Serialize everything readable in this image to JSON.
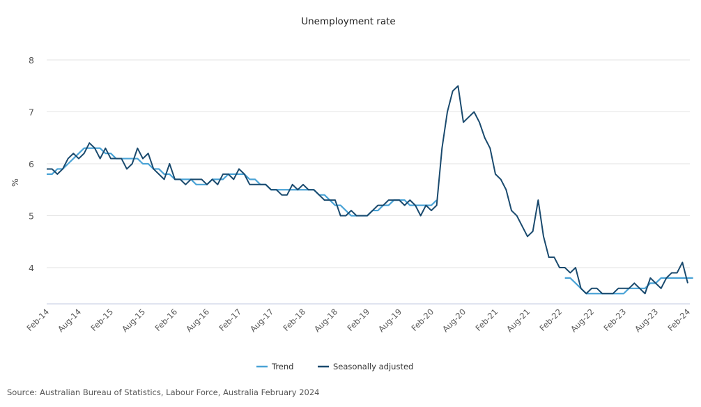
{
  "chart_data": {
    "type": "line",
    "title": "Unemployment rate",
    "xlabel": "",
    "ylabel": "%",
    "ylim": [
      3.3,
      8
    ],
    "yticks": [
      "4",
      "5",
      "6",
      "7",
      "8"
    ],
    "ytick_values": [
      4,
      5,
      6,
      7,
      8
    ],
    "grid": true,
    "legend_position": "bottom",
    "x_start": "Feb-14",
    "x_tick_labels": [
      "Feb-14",
      "Aug-14",
      "Feb-15",
      "Aug-15",
      "Feb-16",
      "Aug-16",
      "Feb-17",
      "Aug-17",
      "Feb-18",
      "Aug-18",
      "Feb-19",
      "Aug-19",
      "Feb-20",
      "Aug-20",
      "Feb-21",
      "Aug-21",
      "Feb-22",
      "Aug-22",
      "Feb-23",
      "Aug-23",
      "Feb-24"
    ],
    "series": [
      {
        "name": "Trend",
        "color": "#4aa3d6",
        "values": [
          5.8,
          5.8,
          5.9,
          5.9,
          6.0,
          6.1,
          6.2,
          6.3,
          6.3,
          6.3,
          6.3,
          6.2,
          6.2,
          6.1,
          6.1,
          6.1,
          6.1,
          6.1,
          6.0,
          6.0,
          5.9,
          5.9,
          5.8,
          5.8,
          5.7,
          5.7,
          5.7,
          5.7,
          5.6,
          5.6,
          5.6,
          5.7,
          5.7,
          5.7,
          5.8,
          5.8,
          5.8,
          5.8,
          5.7,
          5.7,
          5.6,
          5.6,
          5.5,
          5.5,
          5.5,
          5.5,
          5.5,
          5.5,
          5.5,
          5.5,
          5.5,
          5.4,
          5.4,
          5.3,
          5.2,
          5.2,
          5.1,
          5.0,
          5.0,
          5.0,
          5.0,
          5.1,
          5.1,
          5.2,
          5.2,
          5.3,
          5.3,
          5.3,
          5.2,
          5.2,
          5.2,
          5.2,
          5.2,
          5.3,
          null,
          null,
          null,
          null,
          null,
          null,
          null,
          null,
          null,
          null,
          null,
          null,
          null,
          null,
          null,
          null,
          null,
          null,
          null,
          null,
          null,
          null,
          null,
          3.8,
          3.8,
          3.7,
          3.6,
          3.5,
          3.5,
          3.5,
          3.5,
          3.5,
          3.5,
          3.5,
          3.5,
          3.6,
          3.6,
          3.6,
          3.6,
          3.7,
          3.7,
          3.8,
          3.8,
          3.8,
          3.8,
          3.8,
          3.8,
          3.8
        ]
      },
      {
        "name": "Seasonally adjusted",
        "color": "#1a4a6e",
        "values": [
          5.9,
          5.9,
          5.8,
          5.9,
          6.1,
          6.2,
          6.1,
          6.2,
          6.4,
          6.3,
          6.1,
          6.3,
          6.1,
          6.1,
          6.1,
          5.9,
          6.0,
          6.3,
          6.1,
          6.2,
          5.9,
          5.8,
          5.7,
          6.0,
          5.7,
          5.7,
          5.6,
          5.7,
          5.7,
          5.7,
          5.6,
          5.7,
          5.6,
          5.8,
          5.8,
          5.7,
          5.9,
          5.8,
          5.6,
          5.6,
          5.6,
          5.6,
          5.5,
          5.5,
          5.4,
          5.4,
          5.6,
          5.5,
          5.6,
          5.5,
          5.5,
          5.4,
          5.3,
          5.3,
          5.3,
          5.0,
          5.0,
          5.1,
          5.0,
          5.0,
          5.0,
          5.1,
          5.2,
          5.2,
          5.3,
          5.3,
          5.3,
          5.2,
          5.3,
          5.2,
          5.0,
          5.2,
          5.1,
          5.2,
          6.3,
          7.0,
          7.4,
          7.5,
          6.8,
          6.9,
          7.0,
          6.8,
          6.5,
          6.3,
          5.8,
          5.7,
          5.5,
          5.1,
          5.0,
          4.8,
          4.6,
          4.7,
          5.3,
          4.6,
          4.2,
          4.2,
          4.0,
          4.0,
          3.9,
          4.0,
          3.6,
          3.5,
          3.6,
          3.6,
          3.5,
          3.5,
          3.5,
          3.6,
          3.6,
          3.6,
          3.7,
          3.6,
          3.5,
          3.8,
          3.7,
          3.6,
          3.8,
          3.9,
          3.9,
          4.1,
          3.7
        ]
      }
    ]
  },
  "source": "Source: Australian Bureau of Statistics, Labour Force, Australia February 2024"
}
